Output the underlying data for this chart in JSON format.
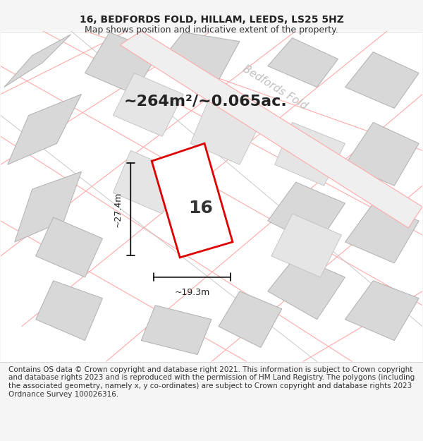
{
  "title": "16, BEDFORDS FOLD, HILLAM, LEEDS, LS25 5HZ",
  "subtitle": "Map shows position and indicative extent of the property.",
  "area_text": "~264m²/~0.065ac.",
  "width_label": "~19.3m",
  "height_label": "~27.4m",
  "plot_number": "16",
  "road_label": "Bedfords Fold",
  "footer_text": "Contains OS data © Crown copyright and database right 2021. This information is subject to Crown copyright and database rights 2023 and is reproduced with the permission of HM Land Registry. The polygons (including the associated geometry, namely x, y co-ordinates) are subject to Crown copyright and database rights 2023 Ordnance Survey 100026316.",
  "bg_color": "#f5f5f5",
  "map_bg": "#ffffff",
  "plot_color": "#ff0000",
  "plot_fill": "#ffffff",
  "building_color": "#d0d0d0",
  "road_color": "#e8e8e8",
  "pink_line_color": "#ffaaaa",
  "gray_line_color": "#c0c0c0",
  "title_fontsize": 10,
  "subtitle_fontsize": 9,
  "area_fontsize": 16,
  "dim_fontsize": 9,
  "number_fontsize": 18,
  "road_label_fontsize": 11,
  "footer_fontsize": 7.5
}
